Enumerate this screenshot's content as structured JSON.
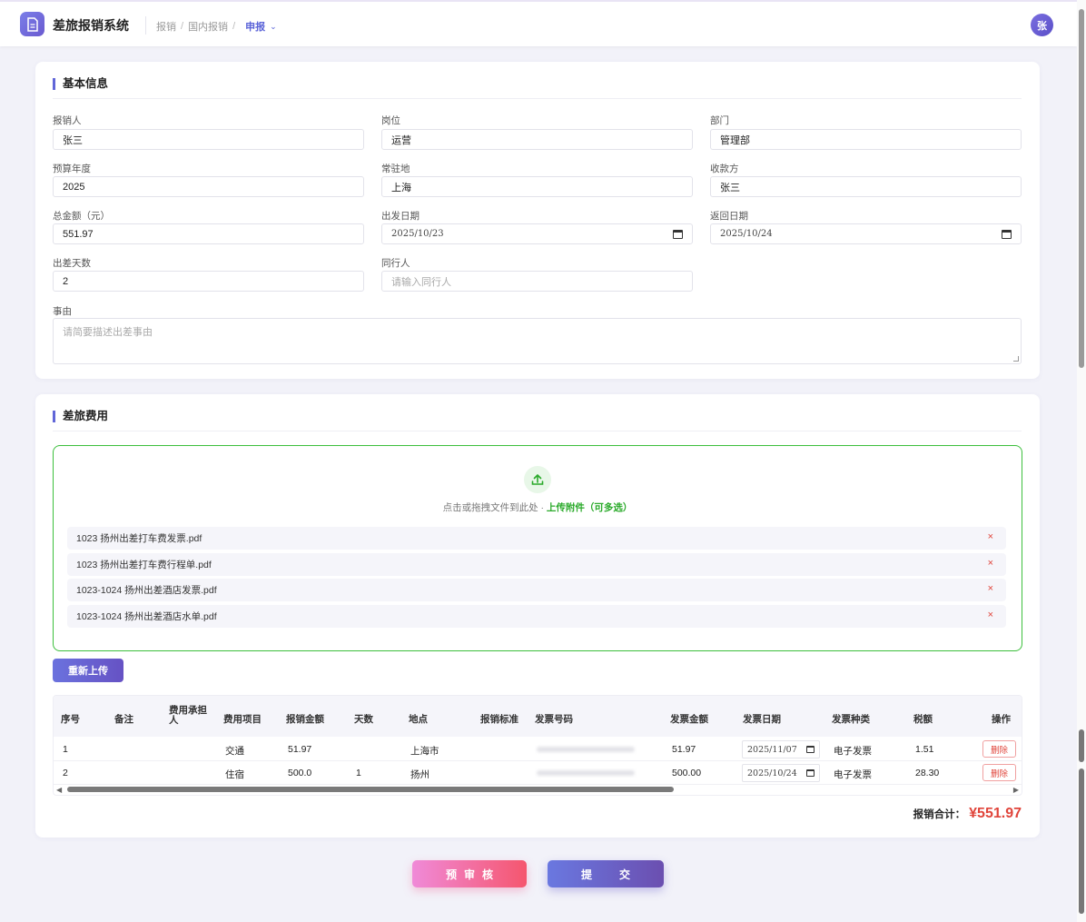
{
  "app": {
    "title": "差旅报销系统",
    "avatar_text": "张"
  },
  "breadcrumb": {
    "item1": "报销",
    "item2": "国内报销",
    "active": "申报"
  },
  "basic_info": {
    "title": "基本信息",
    "fields": {
      "applicant": {
        "label": "报销人",
        "value": "张三"
      },
      "position": {
        "label": "岗位",
        "value": "运营"
      },
      "department": {
        "label": "部门",
        "value": "管理部"
      },
      "budget_year": {
        "label": "预算年度",
        "value": "2025"
      },
      "base": {
        "label": "常驻地",
        "value": "上海"
      },
      "payee": {
        "label": "收款方",
        "value": "张三"
      },
      "total_amount": {
        "label": "总金额（元）",
        "value": "551.97"
      },
      "depart_date": {
        "label": "出发日期",
        "value": "2025/10/23"
      },
      "return_date": {
        "label": "返回日期",
        "value": "2025/10/24"
      },
      "days": {
        "label": "出差天数",
        "value": "2"
      },
      "companions": {
        "label": "同行人",
        "placeholder": "请输入同行人"
      },
      "reason": {
        "label": "事由",
        "placeholder": "请简要描述出差事由"
      }
    }
  },
  "expenses": {
    "title": "差旅费用",
    "upload": {
      "hint": "点击或拖拽文件到此处 · ",
      "accent": "上传附件（可多选）",
      "files": [
        "1023 扬州出差打车费发票.pdf",
        "1023 扬州出差打车费行程单.pdf",
        "1023-1024 扬州出差酒店发票.pdf",
        "1023-1024 扬州出差酒店水单.pdf"
      ],
      "remove_glyph": "×"
    },
    "reupload_label": "重新上传",
    "table": {
      "headers": {
        "no": "序号",
        "remark": "备注",
        "bearer_1": "费用承担",
        "bearer_2": "人",
        "item": "费用项目",
        "amount": "报销金额",
        "days": "天数",
        "place": "地点",
        "standard": "报销标准",
        "invoice_no": "发票号码",
        "invoice_amount": "发票金额",
        "invoice_date": "发票日期",
        "invoice_type": "发票种类",
        "tax": "税额",
        "action": "操作"
      },
      "rows": [
        {
          "no": "1",
          "item": "交通",
          "amount": "51.97",
          "days": "",
          "place": "上海市",
          "invoice_amount": "51.97",
          "invoice_date": "2025/11/07",
          "invoice_type": "电子发票",
          "tax": "1.51",
          "action": "删除"
        },
        {
          "no": "2",
          "item": "住宿",
          "amount": "500.0",
          "days": "1",
          "place": "扬州",
          "invoice_amount": "500.00",
          "invoice_date": "2025/10/24",
          "invoice_type": "电子发票",
          "tax": "28.30",
          "action": "删除"
        }
      ]
    },
    "total_label": "报销合计：",
    "total_value": "¥551.97"
  },
  "actions": {
    "precheck": "预审核",
    "submit": "提交"
  },
  "colors": {
    "accent": "#6166d8",
    "upload_border": "#3cbf3c",
    "danger": "#e0443a"
  }
}
